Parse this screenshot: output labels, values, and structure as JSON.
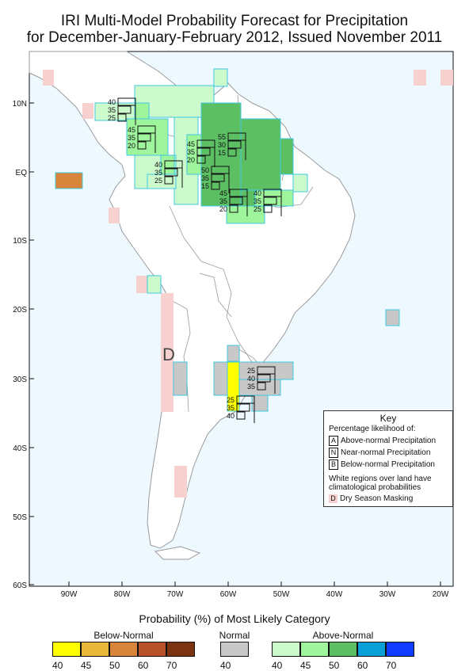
{
  "title_line1": "IRI Multi-Model Probability Forecast for Precipitation",
  "title_line2": "for December-January-February 2012, Issued November 2011",
  "lat_labels": [
    "10N",
    "EQ",
    "10S",
    "20S",
    "30S",
    "40S",
    "50S",
    "60S"
  ],
  "lon_labels": [
    "90W",
    "80W",
    "70W",
    "60W",
    "50W",
    "40W",
    "30W",
    "20W"
  ],
  "dry_label": "D",
  "probability_boxes": [
    {
      "id": "nw-colombia",
      "values": [
        "40",
        "35",
        "25"
      ]
    },
    {
      "id": "venezuela-west",
      "values": [
        "45",
        "35",
        "20"
      ]
    },
    {
      "id": "venezuela-east",
      "values": [
        "55",
        "30",
        "15"
      ]
    },
    {
      "id": "venezuela-south",
      "values": [
        "45",
        "35",
        "20"
      ]
    },
    {
      "id": "colombia-south",
      "values": [
        "40",
        "35",
        "25"
      ]
    },
    {
      "id": "guyana-south",
      "values": [
        "50",
        "35",
        "15"
      ]
    },
    {
      "id": "amazon-north",
      "values": [
        "45",
        "35",
        "20"
      ]
    },
    {
      "id": "brazil-north",
      "values": [
        "40",
        "35",
        "25"
      ]
    },
    {
      "id": "uruguay-north",
      "values": [
        "25",
        "40",
        "35"
      ]
    },
    {
      "id": "argentina-east",
      "values": [
        "25",
        "35",
        "40"
      ]
    }
  ],
  "key": {
    "title": "Key",
    "subtitle": "Percentage likelihood of:",
    "rows": [
      {
        "letter": "A",
        "label": "Above-normal Precipitation"
      },
      {
        "letter": "N",
        "label": "Near-normal Precipitation"
      },
      {
        "letter": "B",
        "label": "Below-normal Precipitation"
      }
    ],
    "white_note_line1": "White regions over land have",
    "white_note_line2": "climatological probabilities",
    "dry_letter": "D",
    "dry_label": "Dry Season Masking"
  },
  "legend": {
    "title": "Probability (%) of Most Likely Category",
    "below_label": "Below-Normal",
    "normal_label": "Normal",
    "above_label": "Above-Normal",
    "below_colors": [
      "#ffff00",
      "#e9b73a",
      "#d8843a",
      "#b65129",
      "#7c3410"
    ],
    "normal_color": "#c8c8c8",
    "above_colors": [
      "#cdfacd",
      "#9ef59c",
      "#5cbf63",
      "#0aa0d7",
      "#0f3cff"
    ],
    "below_ticks": [
      "40",
      "45",
      "50",
      "60",
      "70"
    ],
    "normal_ticks": [
      "40"
    ],
    "above_ticks": [
      "40",
      "45",
      "50",
      "60",
      "70"
    ]
  },
  "map_colors": {
    "ocean": "#eef8ff",
    "land": "#ffffff",
    "coast": "#9a9a9a",
    "cell_border": "#40c8e0",
    "dry": "#f7d0d0",
    "above40": "#cdfacd",
    "above45": "#9ef59c",
    "above50": "#5cbf63",
    "below40": "#ffff00",
    "below50": "#d8843a",
    "normal": "#c8c8c8"
  }
}
